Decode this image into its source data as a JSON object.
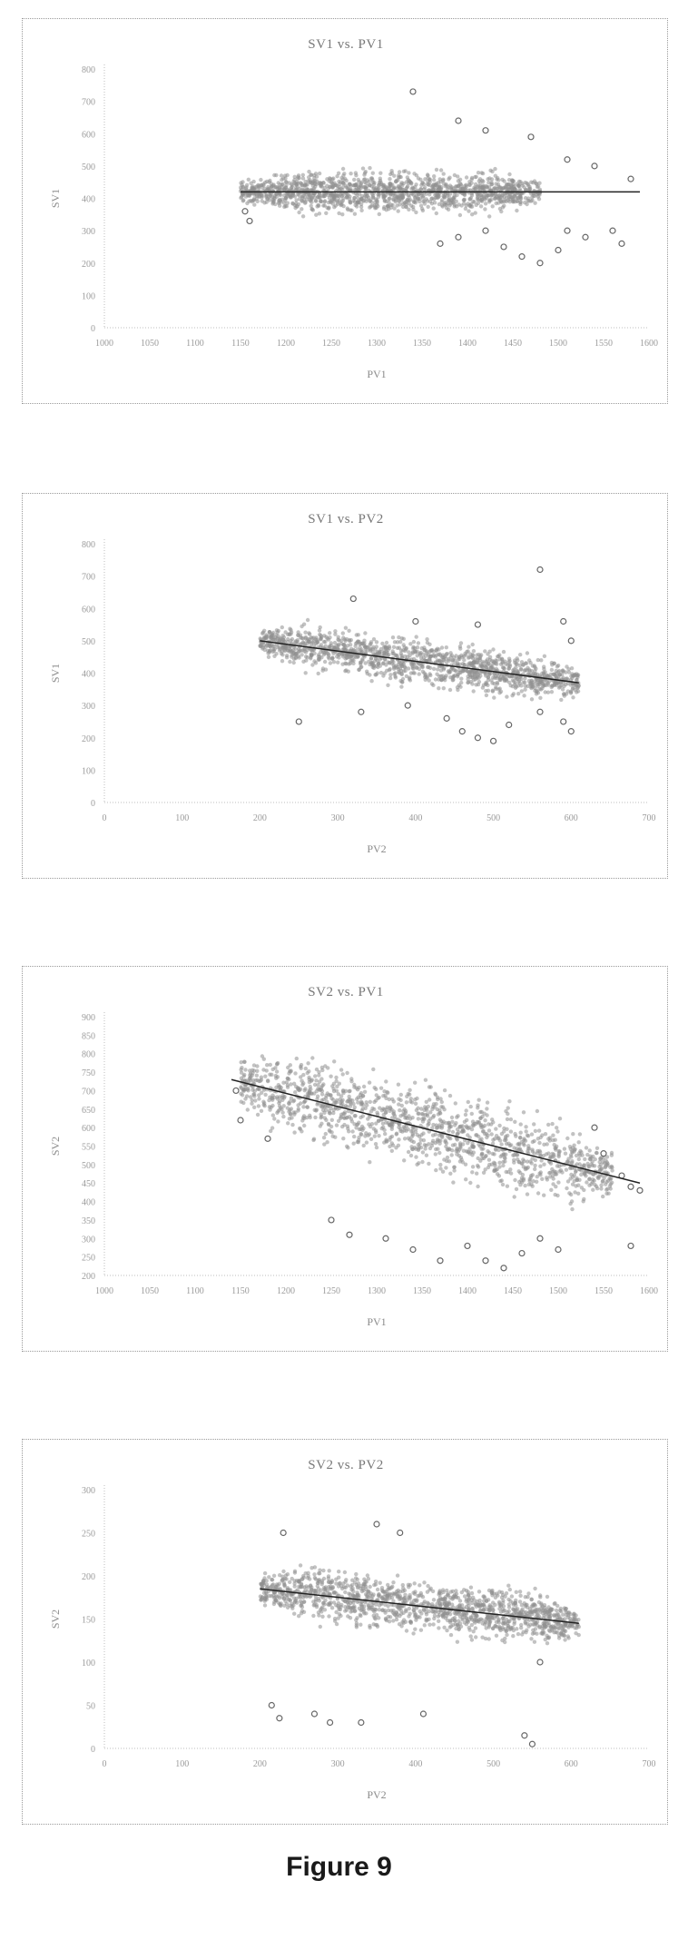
{
  "figure_caption": "Figure 9",
  "chart_data": [
    {
      "type": "scatter",
      "title": "SV1 vs. PV1",
      "xlabel": "PV1",
      "ylabel": "SV1",
      "xlim": [
        1000,
        1600
      ],
      "ylim": [
        0,
        800
      ],
      "xticks": [
        "1000",
        "1050",
        "1100",
        "1150",
        "1200",
        "1250",
        "1300",
        "1350",
        "1400",
        "1450",
        "1500",
        "1550",
        "1600"
      ],
      "yticks": [
        "800",
        "700",
        "600",
        "500",
        "400",
        "300",
        "200",
        "100",
        "0"
      ],
      "grid": false,
      "cloud": {
        "x_min": 1150,
        "x_max": 1480,
        "y_center": 420,
        "y_spread": 85
      },
      "trendline": [
        [
          1150,
          420
        ],
        [
          1590,
          420
        ]
      ],
      "outliers": [
        [
          1340,
          730
        ],
        [
          1390,
          640
        ],
        [
          1420,
          610
        ],
        [
          1470,
          590
        ],
        [
          1510,
          520
        ],
        [
          1540,
          500
        ],
        [
          1580,
          460
        ],
        [
          1370,
          260
        ],
        [
          1390,
          280
        ],
        [
          1420,
          300
        ],
        [
          1440,
          250
        ],
        [
          1460,
          220
        ],
        [
          1480,
          200
        ],
        [
          1500,
          240
        ],
        [
          1510,
          300
        ],
        [
          1530,
          280
        ],
        [
          1560,
          300
        ],
        [
          1570,
          260
        ],
        [
          1155,
          360
        ],
        [
          1160,
          330
        ]
      ]
    },
    {
      "type": "scatter",
      "title": "SV1 vs. PV2",
      "xlabel": "PV2",
      "ylabel": "SV1",
      "xlim": [
        0,
        700
      ],
      "ylim": [
        0,
        800
      ],
      "xticks": [
        "0",
        "100",
        "200",
        "300",
        "400",
        "500",
        "600",
        "700"
      ],
      "yticks": [
        "800",
        "700",
        "600",
        "500",
        "400",
        "300",
        "200",
        "100",
        "0"
      ],
      "grid": false,
      "cloud": {
        "x_min": 200,
        "x_max": 610,
        "y_center": 440,
        "y_spread": 90
      },
      "trendline": [
        [
          200,
          500
        ],
        [
          610,
          370
        ]
      ],
      "outliers": [
        [
          560,
          720
        ],
        [
          320,
          630
        ],
        [
          400,
          560
        ],
        [
          480,
          550
        ],
        [
          590,
          560
        ],
        [
          600,
          500
        ],
        [
          250,
          250
        ],
        [
          330,
          280
        ],
        [
          390,
          300
        ],
        [
          440,
          260
        ],
        [
          460,
          220
        ],
        [
          480,
          200
        ],
        [
          500,
          190
        ],
        [
          520,
          240
        ],
        [
          560,
          280
        ],
        [
          590,
          250
        ],
        [
          600,
          220
        ]
      ]
    },
    {
      "type": "scatter",
      "title": "SV2 vs. PV1",
      "xlabel": "PV1",
      "ylabel": "SV2",
      "xlim": [
        1000,
        1600
      ],
      "ylim": [
        200,
        900
      ],
      "xticks": [
        "1000",
        "1050",
        "1100",
        "1150",
        "1200",
        "1250",
        "1300",
        "1350",
        "1400",
        "1450",
        "1500",
        "1550",
        "1600"
      ],
      "yticks": [
        "900",
        "850",
        "800",
        "750",
        "700",
        "650",
        "600",
        "550",
        "500",
        "450",
        "400",
        "350",
        "300",
        "250",
        "200"
      ],
      "grid": false,
      "cloud": {
        "x_min": 1150,
        "x_max": 1560,
        "y_center": 620,
        "y_spread": 150
      },
      "trendline": [
        [
          1140,
          730
        ],
        [
          1590,
          450
        ]
      ],
      "outliers": [
        [
          1145,
          700
        ],
        [
          1150,
          620
        ],
        [
          1180,
          570
        ],
        [
          1540,
          600
        ],
        [
          1550,
          530
        ],
        [
          1570,
          470
        ],
        [
          1580,
          440
        ],
        [
          1590,
          430
        ],
        [
          1580,
          280
        ],
        [
          1250,
          350
        ],
        [
          1270,
          310
        ],
        [
          1310,
          300
        ],
        [
          1340,
          270
        ],
        [
          1370,
          240
        ],
        [
          1400,
          280
        ],
        [
          1420,
          240
        ],
        [
          1440,
          220
        ],
        [
          1460,
          260
        ],
        [
          1480,
          300
        ],
        [
          1500,
          270
        ]
      ]
    },
    {
      "type": "scatter",
      "title": "SV2 vs. PV2",
      "xlabel": "PV2",
      "ylabel": "SV2",
      "xlim": [
        0,
        700
      ],
      "ylim": [
        0,
        300
      ],
      "xticks": [
        "0",
        "100",
        "200",
        "300",
        "400",
        "500",
        "600",
        "700"
      ],
      "yticks": [
        "300",
        "250",
        "200",
        "150",
        "100",
        "50",
        "0"
      ],
      "grid": false,
      "cloud": {
        "x_min": 200,
        "x_max": 610,
        "y_center": 160,
        "y_spread": 40
      },
      "trendline": [
        [
          200,
          185
        ],
        [
          610,
          145
        ]
      ],
      "outliers": [
        [
          215,
          50
        ],
        [
          225,
          35
        ],
        [
          270,
          40
        ],
        [
          290,
          30
        ],
        [
          330,
          30
        ],
        [
          410,
          40
        ],
        [
          540,
          15
        ],
        [
          550,
          5
        ],
        [
          230,
          250
        ],
        [
          350,
          260
        ],
        [
          380,
          250
        ],
        [
          560,
          100
        ]
      ]
    }
  ]
}
